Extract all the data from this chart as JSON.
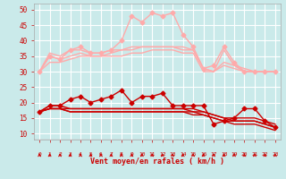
{
  "x": [
    0,
    1,
    2,
    3,
    4,
    5,
    6,
    7,
    8,
    9,
    10,
    11,
    12,
    13,
    14,
    15,
    16,
    17,
    18,
    19,
    20,
    21,
    22,
    23
  ],
  "bg_color": "#caeaea",
  "grid_color": "#ffffff",
  "xlabel": "Vent moyen/en rafales ( km/h )",
  "xlabel_color": "#cc0000",
  "tick_color": "#cc0000",
  "ylim": [
    8,
    52
  ],
  "yticks": [
    10,
    15,
    20,
    25,
    30,
    35,
    40,
    45,
    50
  ],
  "series": [
    {
      "y": [
        30,
        35,
        34,
        37,
        38,
        36,
        36,
        37,
        40,
        48,
        46,
        49,
        48,
        49,
        42,
        38,
        31,
        32,
        38,
        33,
        30,
        30,
        30,
        30
      ],
      "color": "#ffaaaa",
      "lw": 1.0,
      "marker": "D",
      "ms": 2.5
    },
    {
      "y": [
        30,
        36,
        35,
        37,
        37,
        36,
        36,
        37,
        37,
        38,
        38,
        38,
        38,
        38,
        38,
        37,
        31,
        30,
        37,
        32,
        31,
        30,
        30,
        30
      ],
      "color": "#ffaaaa",
      "lw": 1.0,
      "marker": null
    },
    {
      "y": [
        30,
        35,
        34,
        35,
        36,
        35,
        35,
        36,
        37,
        37,
        38,
        38,
        38,
        38,
        37,
        37,
        31,
        30,
        33,
        32,
        30,
        30,
        30,
        30
      ],
      "color": "#ffaaaa",
      "lw": 1.0,
      "marker": null
    },
    {
      "y": [
        30,
        33,
        33,
        34,
        35,
        35,
        35,
        35,
        35,
        36,
        36,
        37,
        37,
        37,
        36,
        36,
        30,
        30,
        32,
        31,
        30,
        30,
        30,
        30
      ],
      "color": "#ffaaaa",
      "lw": 1.0,
      "marker": null
    },
    {
      "y": [
        17,
        19,
        19,
        21,
        22,
        20,
        21,
        22,
        24,
        20,
        22,
        22,
        23,
        19,
        19,
        19,
        19,
        13,
        14,
        15,
        18,
        18,
        14,
        12
      ],
      "color": "#cc0000",
      "lw": 1.0,
      "marker": "D",
      "ms": 2.5
    },
    {
      "y": [
        17,
        19,
        19,
        18,
        18,
        18,
        18,
        18,
        18,
        18,
        18,
        18,
        18,
        18,
        18,
        18,
        17,
        16,
        15,
        15,
        15,
        15,
        14,
        13
      ],
      "color": "#cc0000",
      "lw": 1.0,
      "marker": null
    },
    {
      "y": [
        17,
        18,
        18,
        18,
        18,
        18,
        18,
        18,
        18,
        18,
        18,
        18,
        18,
        18,
        18,
        17,
        17,
        16,
        15,
        14,
        14,
        14,
        13,
        12
      ],
      "color": "#cc0000",
      "lw": 1.0,
      "marker": null
    },
    {
      "y": [
        17,
        18,
        18,
        17,
        17,
        17,
        17,
        17,
        17,
        17,
        17,
        17,
        17,
        17,
        17,
        17,
        16,
        15,
        14,
        14,
        14,
        14,
        13,
        12
      ],
      "color": "#cc0000",
      "lw": 1.0,
      "marker": null
    },
    {
      "y": [
        17,
        18,
        18,
        17,
        17,
        17,
        17,
        17,
        17,
        17,
        17,
        17,
        17,
        17,
        17,
        16,
        16,
        15,
        14,
        13,
        13,
        13,
        12,
        11
      ],
      "color": "#cc0000",
      "lw": 1.0,
      "marker": null
    }
  ],
  "arrow_color": "#cc0000"
}
